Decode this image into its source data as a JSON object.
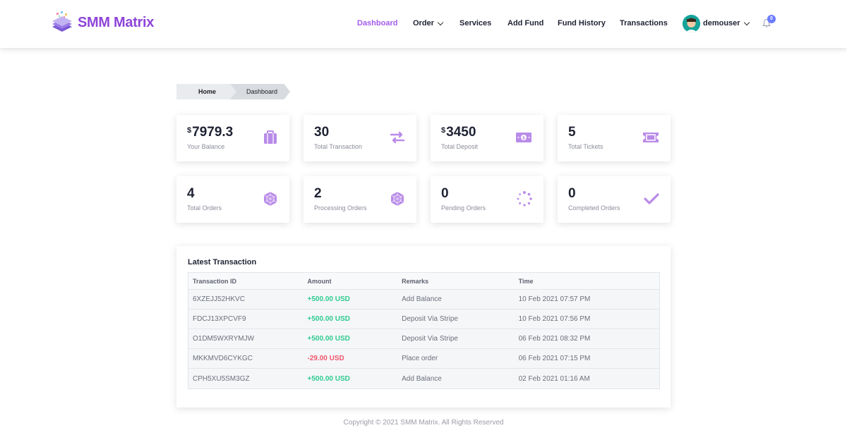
{
  "brand": {
    "name": "SMM Matrix"
  },
  "nav": {
    "dashboard": "Dashboard",
    "order": "Order",
    "services": "Services",
    "add_fund": "Add Fund",
    "fund_history": "Fund History",
    "transactions": "Transactions"
  },
  "user": {
    "name": "demouser",
    "notifications": "0"
  },
  "breadcrumb": {
    "home": "Home",
    "current": "Dashboard"
  },
  "stats": [
    {
      "currency": "$",
      "value": "7979.3",
      "label": "Your Balance",
      "icon": "briefcase-icon"
    },
    {
      "currency": "",
      "value": "30",
      "label": "Total Transaction",
      "icon": "exchange-icon"
    },
    {
      "currency": "$",
      "value": "3450",
      "label": "Total Deposit",
      "icon": "money-bill-icon"
    },
    {
      "currency": "",
      "value": "5",
      "label": "Total Tickets",
      "icon": "ticket-icon"
    },
    {
      "currency": "",
      "value": "4",
      "label": "Total Orders",
      "icon": "cube-icon"
    },
    {
      "currency": "",
      "value": "2",
      "label": "Processing Orders",
      "icon": "cube-icon"
    },
    {
      "currency": "",
      "value": "0",
      "label": "Pending Orders",
      "icon": "spinner-icon"
    },
    {
      "currency": "",
      "value": "0",
      "label": "Completed Orders",
      "icon": "check-icon"
    }
  ],
  "transactions": {
    "title": "Latest Transaction",
    "columns": [
      "Transaction ID",
      "Amount",
      "Remarks",
      "Time"
    ],
    "rows": [
      {
        "id": "6XZEJJ52HKVC",
        "amount": "+500.00 USD",
        "remarks": "Add Balance",
        "time": "10 Feb 2021 07:57 PM"
      },
      {
        "id": "FDCJ13XPCVF9",
        "amount": "+500.00 USD",
        "remarks": "Deposit Via Stripe",
        "time": "10 Feb 2021 07:56 PM"
      },
      {
        "id": "O1DM5WXRYMJW",
        "amount": "+500.00 USD",
        "remarks": "Deposit Via Stripe",
        "time": "06 Feb 2021 08:32 PM"
      },
      {
        "id": "MKKMVD6CYKGC",
        "amount": "-29.00 USD",
        "remarks": "Place order",
        "time": "06 Feb 2021 07:15 PM"
      },
      {
        "id": "CPH5XU5SM3GZ",
        "amount": "+500.00 USD",
        "remarks": "Add Balance",
        "time": "02 Feb 2021 01:16 AM"
      }
    ]
  },
  "colors": {
    "accent": "#a35bea",
    "icon": "#b98be8",
    "positive": "#2ecc8f",
    "negative": "#f0566d"
  },
  "footer": {
    "text": "Copyright © 2021 SMM Matrix. All Rights Reserved"
  }
}
